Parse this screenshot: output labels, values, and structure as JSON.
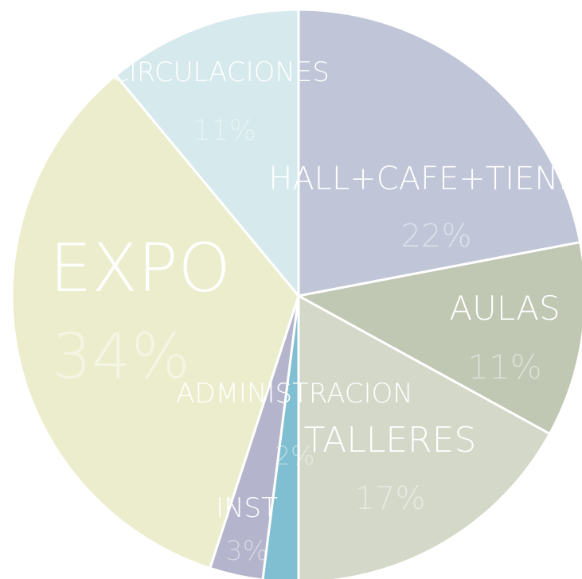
{
  "chart_data": {
    "type": "pie",
    "title": "",
    "start": "top, clockwise",
    "slices": [
      {
        "label": "HALL+CAFE+TIENDA",
        "percent_label": "22%",
        "value": 22,
        "color": "#c0c6d8"
      },
      {
        "label": "AULAS",
        "percent_label": "11%",
        "value": 11,
        "color": "#c0c7b2"
      },
      {
        "label": "TALLERES",
        "percent_label": "17%",
        "value": 17,
        "color": "#d4d8c8"
      },
      {
        "label": "",
        "percent_label": "",
        "value": 2,
        "color": "#7fbfd1"
      },
      {
        "label": "INST",
        "percent_label": "3%",
        "value": 3,
        "color": "#b4b4cc"
      },
      {
        "label": "EXPO",
        "percent_label": "34%",
        "value": 34,
        "color": "#ecedcc"
      },
      {
        "label": "CIRCULACIONES",
        "percent_label": "11%",
        "value": 11,
        "color": "#d6e9ec"
      }
    ],
    "extra_labels": [
      {
        "label": "ADMINISTRACION",
        "percent_label": "2%"
      }
    ]
  }
}
